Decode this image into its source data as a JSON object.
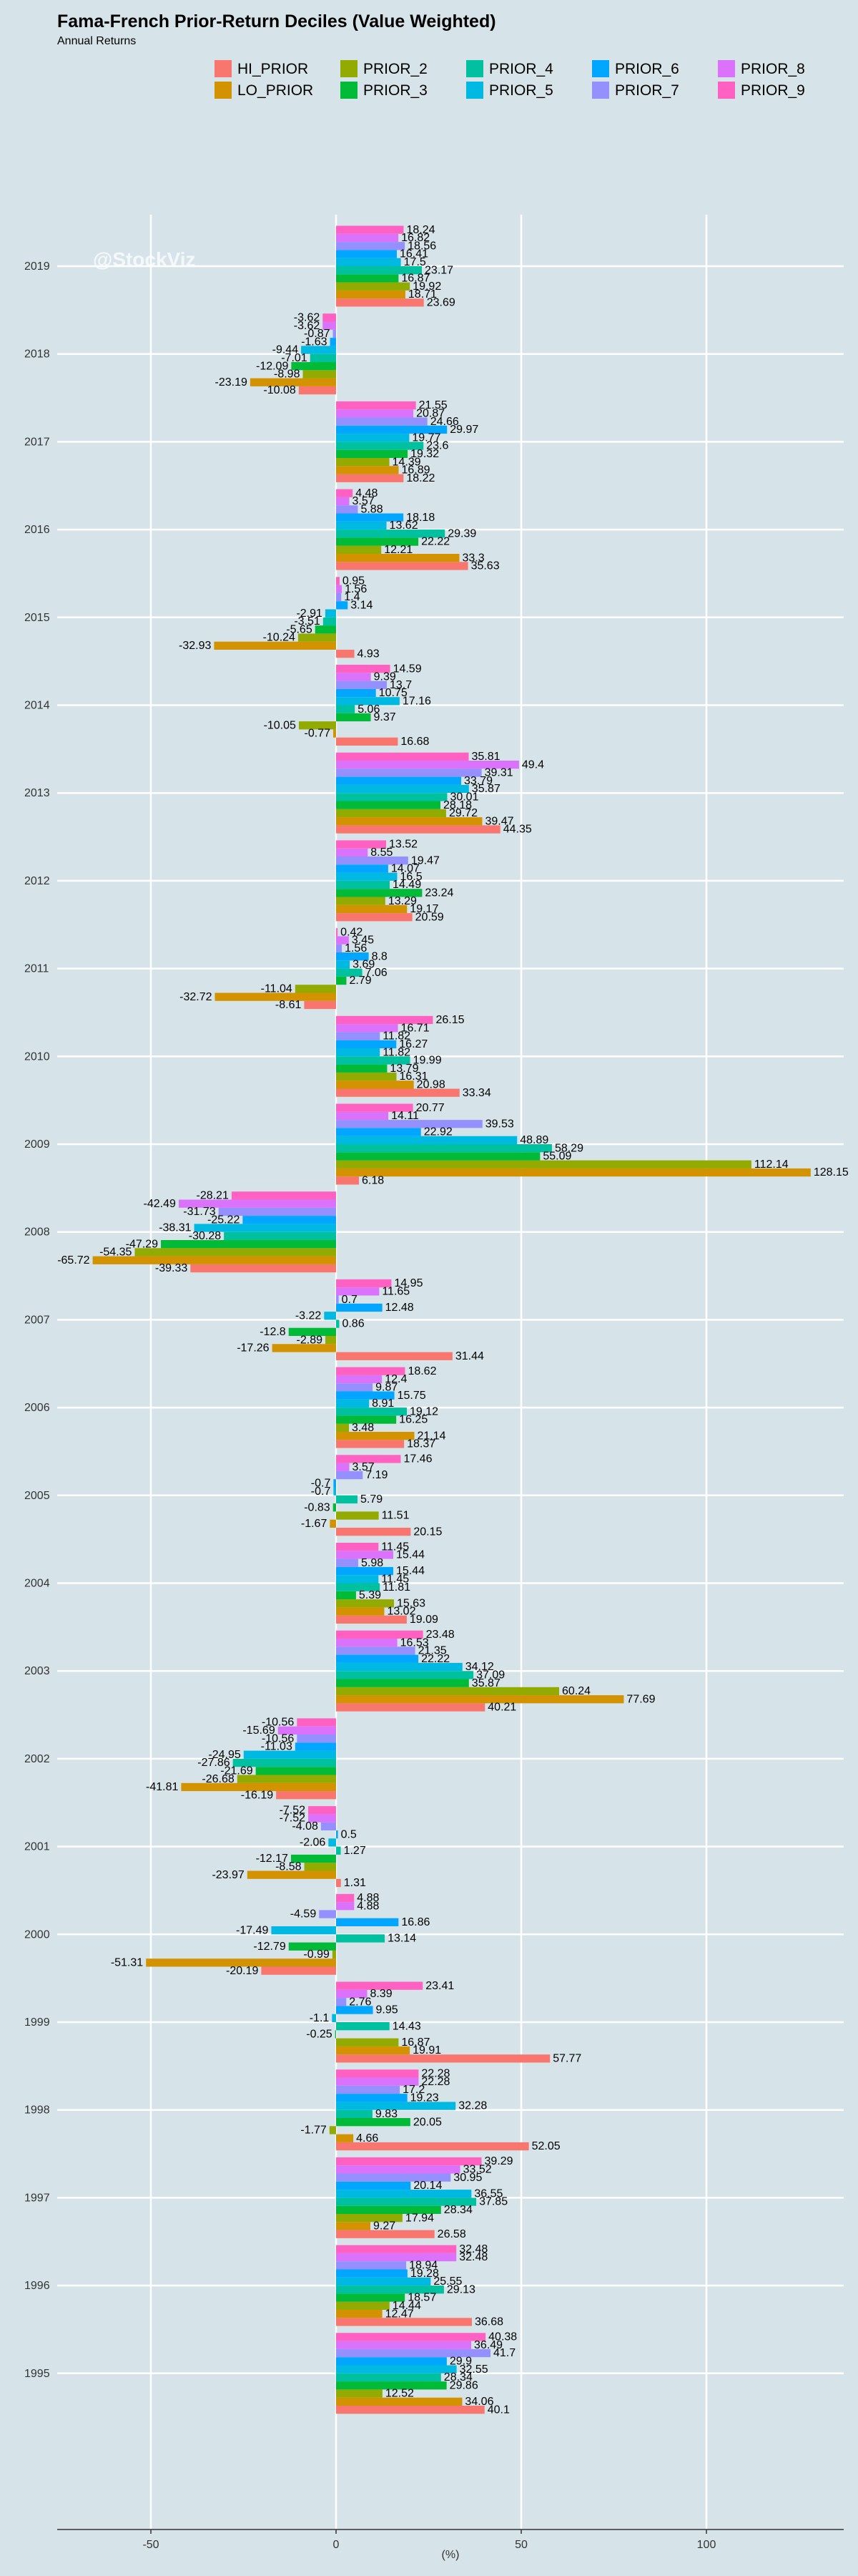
{
  "chart_data": {
    "type": "bar",
    "orientation": "horizontal",
    "title": "Fama-French Prior-Return Deciles (Value Weighted)",
    "subtitle": "Annual Returns",
    "xlabel": "(%)",
    "ylabel": "",
    "xlim": [
      -75,
      138
    ],
    "xticks": [
      -50,
      0,
      50,
      100
    ],
    "watermark": "@StockViz",
    "legend_position": "top",
    "grid": true,
    "categories": [
      "2019",
      "2018",
      "2017",
      "2016",
      "2015",
      "2014",
      "2013",
      "2012",
      "2011",
      "2010",
      "2009",
      "2008",
      "2007",
      "2006",
      "2005",
      "2004",
      "2003",
      "2002",
      "2001",
      "2000",
      "1999",
      "1998",
      "1997",
      "1996",
      "1995"
    ],
    "series": [
      {
        "name": "HI_PRIOR",
        "color": "#f8766d",
        "values": [
          23.69,
          -10.08,
          18.22,
          35.63,
          4.93,
          16.68,
          44.35,
          20.59,
          -8.61,
          33.34,
          6.18,
          -39.33,
          31.44,
          18.37,
          20.15,
          19.09,
          40.21,
          -16.19,
          1.31,
          -20.19,
          57.77,
          52.05,
          26.58,
          36.68,
          40.1
        ]
      },
      {
        "name": "LO_PRIOR",
        "color": "#d39200",
        "values": [
          18.71,
          -23.19,
          16.89,
          33.3,
          -32.93,
          -0.77,
          39.47,
          19.17,
          -32.72,
          20.98,
          128.15,
          -65.72,
          -17.26,
          21.14,
          -1.67,
          13.02,
          77.69,
          -41.81,
          -23.97,
          -51.31,
          19.91,
          4.66,
          9.27,
          12.47,
          34.06
        ]
      },
      {
        "name": "PRIOR_2",
        "color": "#93aa00",
        "values": [
          19.92,
          -8.98,
          14.39,
          12.21,
          -10.24,
          -10.05,
          29.72,
          13.29,
          -11.04,
          16.31,
          112.14,
          -54.35,
          -2.89,
          3.48,
          11.51,
          15.63,
          60.24,
          -26.68,
          -8.58,
          -0.99,
          16.87,
          -1.77,
          17.94,
          14.44,
          12.52
        ]
      },
      {
        "name": "PRIOR_3",
        "color": "#00ba38",
        "values": [
          16.87,
          -12.09,
          19.32,
          22.22,
          -5.65,
          9.37,
          28.18,
          23.24,
          2.79,
          13.79,
          55.09,
          -47.29,
          -12.8,
          16.25,
          -0.83,
          5.39,
          35.87,
          -21.69,
          -12.17,
          -12.79,
          -0.25,
          20.05,
          28.34,
          18.57,
          29.86
        ]
      },
      {
        "name": "PRIOR_4",
        "color": "#00c19f",
        "values": [
          23.17,
          -7.01,
          23.6,
          29.39,
          -3.51,
          5.06,
          30.01,
          14.49,
          7.06,
          19.99,
          58.29,
          -30.28,
          0.86,
          19.12,
          5.79,
          11.81,
          37.09,
          -27.86,
          1.27,
          13.14,
          14.43,
          9.83,
          37.85,
          29.13,
          28.34
        ]
      },
      {
        "name": "PRIOR_5",
        "color": "#00b9e3",
        "values": [
          17.5,
          -9.44,
          19.77,
          13.62,
          -2.91,
          17.16,
          35.87,
          16.5,
          3.69,
          11.82,
          48.89,
          -38.31,
          -3.22,
          8.91,
          -0.7,
          11.45,
          34.12,
          -24.95,
          -2.06,
          -17.49,
          -1.1,
          32.28,
          36.55,
          25.55,
          32.55
        ]
      },
      {
        "name": "PRIOR_6",
        "color": "#00a6ff",
        "values": [
          16.41,
          -1.63,
          29.97,
          18.18,
          3.14,
          10.75,
          33.79,
          14.07,
          8.8,
          16.27,
          22.92,
          -25.22,
          12.48,
          15.75,
          -0.7,
          15.44,
          22.22,
          -11.03,
          0.5,
          16.86,
          9.95,
          19.23,
          20.14,
          19.28,
          29.9
        ]
      },
      {
        "name": "PRIOR_7",
        "color": "#9590ff",
        "values": [
          18.56,
          -0.87,
          24.66,
          5.88,
          1.4,
          13.7,
          39.31,
          19.47,
          1.56,
          11.82,
          39.53,
          -31.73,
          0.7,
          9.87,
          7.19,
          5.98,
          21.35,
          -10.56,
          -4.08,
          -4.59,
          2.76,
          17.2,
          30.95,
          18.94,
          41.7
        ]
      },
      {
        "name": "PRIOR_8",
        "color": "#db72fb",
        "values": [
          16.82,
          -3.62,
          20.87,
          3.57,
          1.56,
          9.39,
          49.4,
          8.55,
          3.45,
          16.71,
          14.11,
          -42.49,
          11.65,
          12.4,
          3.57,
          15.44,
          16.53,
          -15.69,
          -7.52,
          4.88,
          8.39,
          22.28,
          33.52,
          32.48,
          36.49
        ]
      },
      {
        "name": "PRIOR_9",
        "color": "#ff61c3",
        "values": [
          18.24,
          -3.62,
          21.55,
          4.48,
          0.95,
          14.59,
          35.81,
          13.52,
          0.42,
          26.15,
          20.77,
          -28.21,
          14.95,
          18.62,
          17.46,
          11.45,
          23.48,
          -10.56,
          -7.52,
          4.88,
          23.41,
          22.28,
          39.29,
          32.48,
          40.38
        ]
      }
    ],
    "legend": [
      {
        "name": "HI_PRIOR",
        "color": "#f8766d"
      },
      {
        "name": "PRIOR_2",
        "color": "#93aa00"
      },
      {
        "name": "PRIOR_4",
        "color": "#00c19f"
      },
      {
        "name": "PRIOR_6",
        "color": "#00a6ff"
      },
      {
        "name": "PRIOR_8",
        "color": "#db72fb"
      },
      {
        "name": "LO_PRIOR",
        "color": "#d39200"
      },
      {
        "name": "PRIOR_3",
        "color": "#00ba38"
      },
      {
        "name": "PRIOR_5",
        "color": "#00b9e3"
      },
      {
        "name": "PRIOR_7",
        "color": "#9590ff"
      },
      {
        "name": "PRIOR_9",
        "color": "#ff61c3"
      }
    ]
  }
}
